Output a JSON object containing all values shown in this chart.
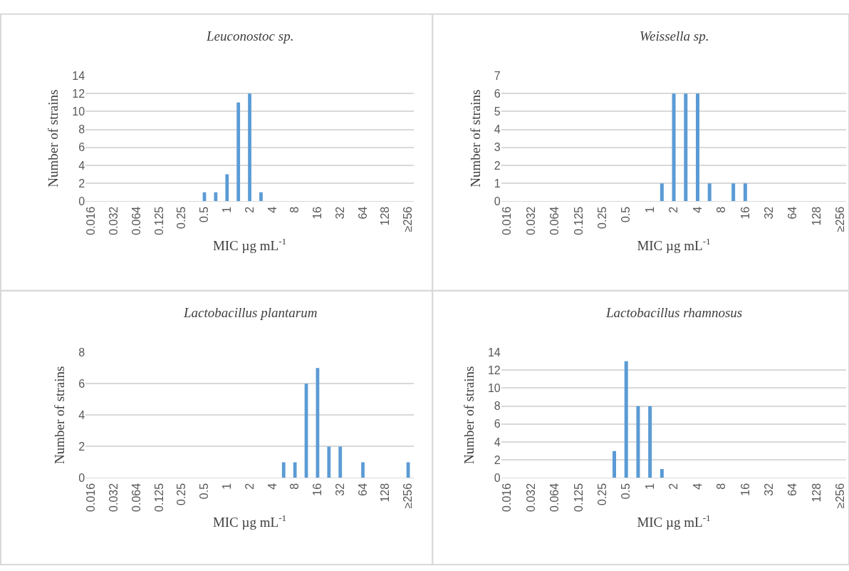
{
  "chart_data": [
    {
      "type": "bar",
      "title": "Leuconostoc sp.",
      "xlabel": "MIC µg mL$^{-1}$",
      "ylabel": "Number of strains",
      "categories": [
        "0.016",
        null,
        "0.032",
        null,
        "0.064",
        null,
        "0.125",
        null,
        "0.25",
        null,
        "0.5",
        null,
        "1",
        null,
        "2",
        null,
        "4",
        null,
        "8",
        null,
        "16",
        null,
        "32",
        null,
        "64",
        null,
        "128",
        null,
        "≥256"
      ],
      "values": [
        0,
        0,
        0,
        0,
        0,
        0,
        0,
        0,
        0,
        0,
        1,
        1,
        3,
        11,
        12,
        1,
        0,
        0,
        0,
        0,
        0,
        0,
        0,
        0,
        0,
        0,
        0,
        0,
        0
      ],
      "color": "#5b9bd5",
      "ylim": [
        0,
        14
      ],
      "yticks": [
        0,
        2,
        4,
        6,
        8,
        10,
        12,
        14
      ],
      "grid": "y"
    },
    {
      "type": "bar",
      "title": "Weissella sp.",
      "xlabel": "MIC µg mL$^{-1}$",
      "ylabel": "Number of strains",
      "categories": [
        "0.016",
        null,
        "0.032",
        null,
        "0.064",
        null,
        "0.125",
        null,
        "0.25",
        null,
        "0.5",
        null,
        "1",
        null,
        "2",
        null,
        "4",
        null,
        "8",
        null,
        "16",
        null,
        "32",
        null,
        "64",
        null,
        "128",
        null,
        "≥256"
      ],
      "values": [
        0,
        0,
        0,
        0,
        0,
        0,
        0,
        0,
        0,
        0,
        0,
        0,
        0,
        1,
        6,
        6,
        6,
        1,
        0,
        1,
        1,
        0,
        0,
        0,
        0,
        0,
        0,
        0,
        0
      ],
      "color": "#5b9bd5",
      "ylim": [
        0,
        7
      ],
      "yticks": [
        0,
        1,
        2,
        3,
        4,
        5,
        6,
        7
      ],
      "grid": "y"
    },
    {
      "type": "bar",
      "title": "Lactobacillus plantarum",
      "xlabel": "MIC µg mL$^{-1}$",
      "ylabel": "Number of strains",
      "categories": [
        "0.016",
        null,
        "0.032",
        null,
        "0.064",
        null,
        "0.125",
        null,
        "0.25",
        null,
        "0.5",
        null,
        "1",
        null,
        "2",
        null,
        "4",
        null,
        "8",
        null,
        "16",
        null,
        "32",
        null,
        "64",
        null,
        "128",
        null,
        "≥256"
      ],
      "values": [
        0,
        0,
        0,
        0,
        0,
        0,
        0,
        0,
        0,
        0,
        0,
        0,
        0,
        0,
        0,
        0,
        0,
        1,
        1,
        6,
        7,
        2,
        2,
        0,
        1,
        0,
        0,
        0,
        1
      ],
      "color": "#5b9bd5",
      "ylim": [
        0,
        8
      ],
      "yticks": [
        0,
        2,
        4,
        6,
        8
      ],
      "grid": "y"
    },
    {
      "type": "bar",
      "title": "Lactobacillus rhamnosus",
      "xlabel": "MIC µg mL$^{-1}$",
      "ylabel": "Number of strains",
      "categories": [
        "0.016",
        null,
        "0.032",
        null,
        "0.064",
        null,
        "0.125",
        null,
        "0.25",
        null,
        "0.5",
        null,
        "1",
        null,
        "2",
        null,
        "4",
        null,
        "8",
        null,
        "16",
        null,
        "32",
        null,
        "64",
        null,
        "128",
        null,
        "≥256"
      ],
      "values": [
        0,
        0,
        0,
        0,
        0,
        0,
        0,
        0,
        0,
        3,
        13,
        8,
        8,
        1,
        0,
        0,
        0,
        0,
        0,
        0,
        0,
        0,
        0,
        0,
        0,
        0,
        0,
        0,
        0
      ],
      "color": "#5b9bd5",
      "ylim": [
        0,
        14
      ],
      "yticks": [
        0,
        2,
        4,
        6,
        8,
        10,
        12,
        14
      ],
      "grid": "y"
    }
  ]
}
